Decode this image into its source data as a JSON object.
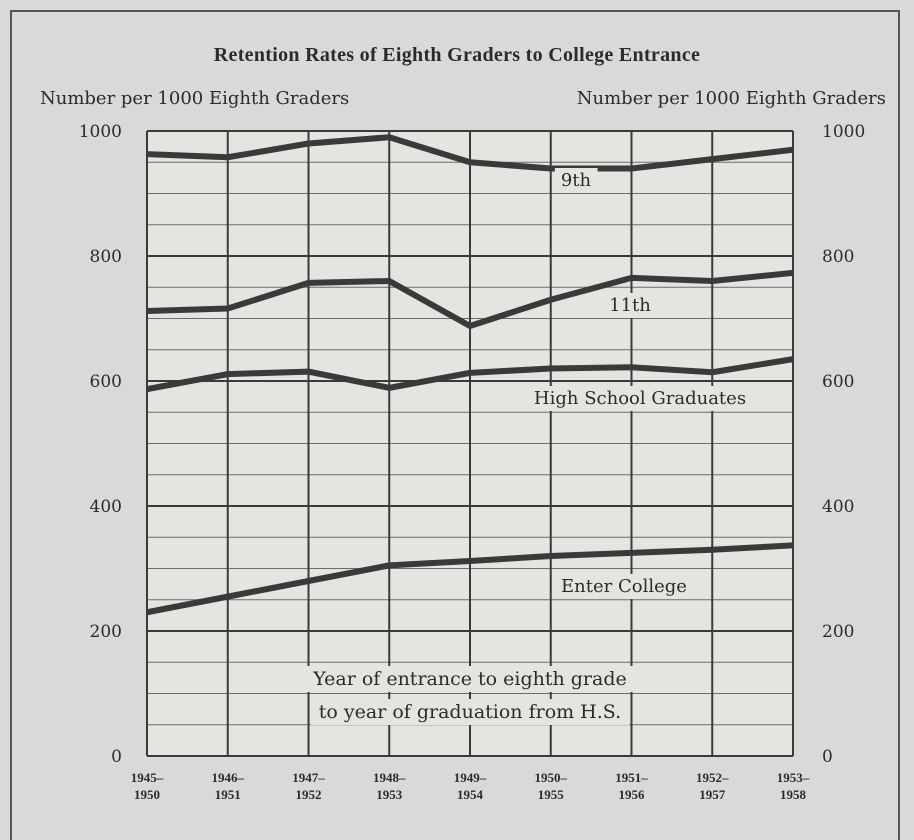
{
  "chart_data": {
    "type": "line",
    "title": "Retention Rates of Eighth Graders to College Entrance",
    "ylabel_left": "Number per 1000 Eighth Graders",
    "ylabel_right": "Number per 1000 Eighth Graders",
    "xlabel_lines": [
      "Year of entrance to eighth grade",
      "to year of graduation from H.S."
    ],
    "ylim": [
      0,
      1000
    ],
    "y_ticks": [
      "0",
      "200",
      "400",
      "600",
      "800",
      "1000"
    ],
    "y_tick_values": [
      0,
      200,
      400,
      600,
      800,
      1000
    ],
    "x_tick_labels": [
      [
        "1945–",
        "1950"
      ],
      [
        "1946–",
        "1951"
      ],
      [
        "1947–",
        "1952"
      ],
      [
        "1948–",
        "1953"
      ],
      [
        "1949–",
        "1954"
      ],
      [
        "1950–",
        "1955"
      ],
      [
        "1951–",
        "1956"
      ],
      [
        "1952–",
        "1957"
      ],
      [
        "1953–",
        "1958"
      ]
    ],
    "grid": true,
    "series": [
      {
        "name": "9th",
        "values": [
          963,
          958,
          980,
          990,
          950,
          940,
          940,
          955,
          970
        ]
      },
      {
        "name": "11th",
        "values": [
          712,
          716,
          757,
          760,
          688,
          730,
          765,
          760,
          773
        ]
      },
      {
        "name": "High School Graduates",
        "values": [
          587,
          611,
          615,
          589,
          613,
          620,
          622,
          614,
          635
        ]
      },
      {
        "name": "Enter College",
        "values": [
          230,
          255,
          280,
          305,
          312,
          320,
          325,
          330,
          337
        ]
      }
    ],
    "line_color": "#3a3a3a",
    "grid_color": "#3a3a3a",
    "background": "#e4e4e1"
  }
}
